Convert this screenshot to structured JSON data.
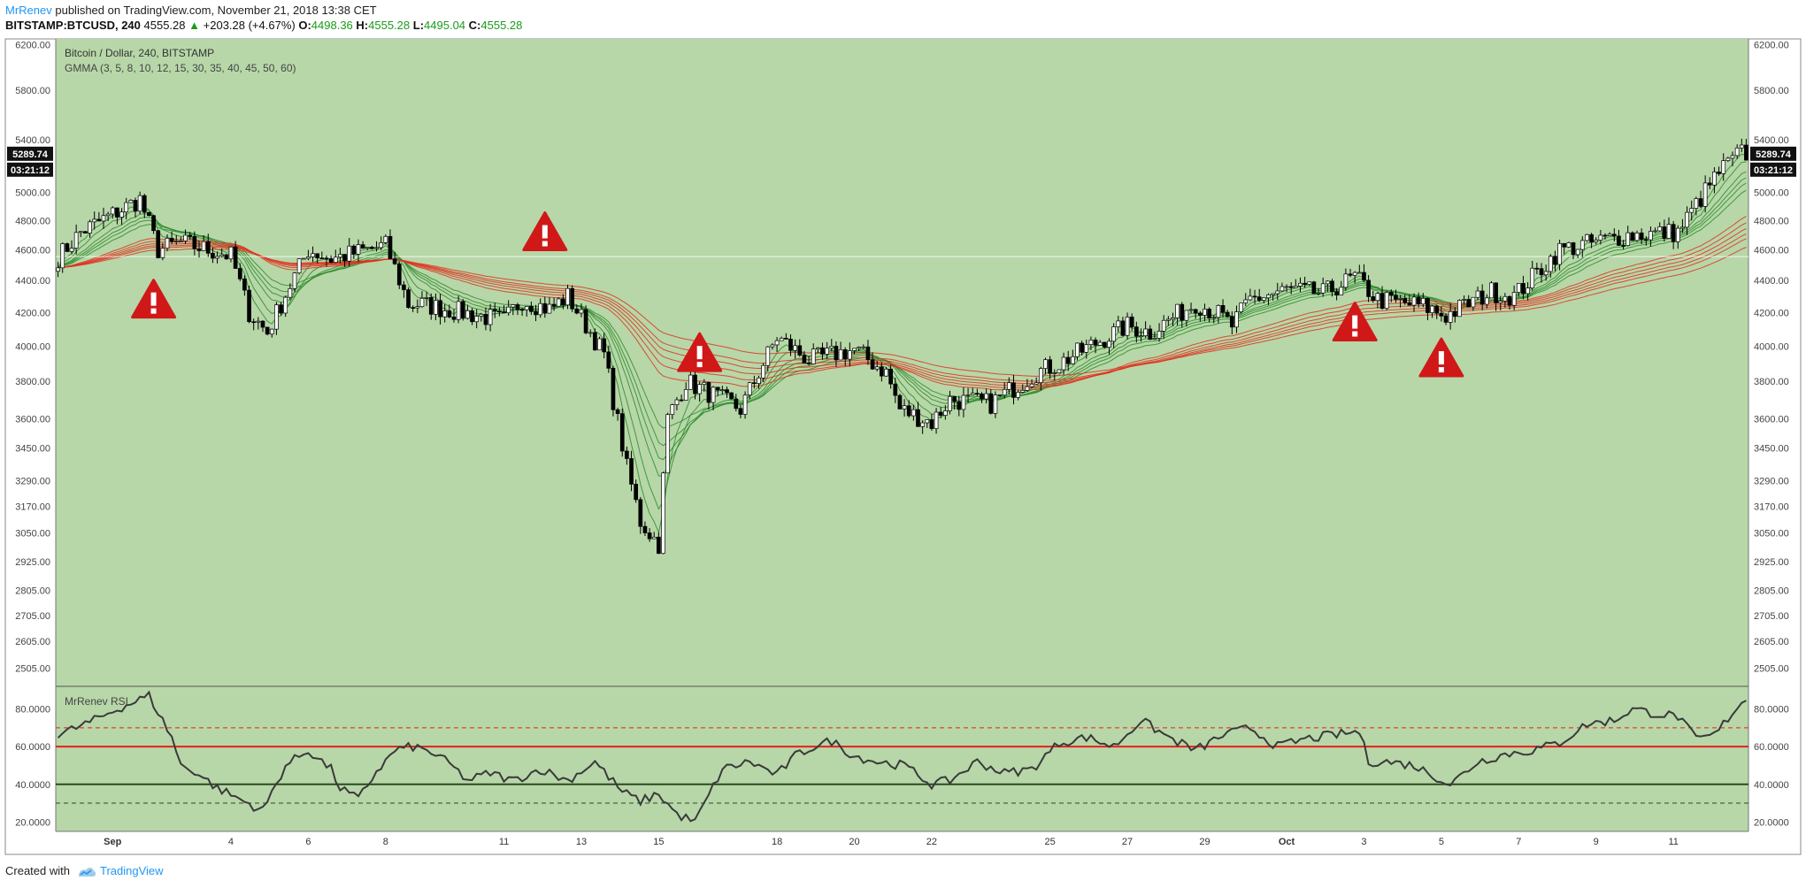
{
  "header": {
    "author": "MrRenev",
    "published_text": " published on TradingView.com, November 21, 2018 13:38 CET",
    "symbol_line": "BITSTAMP:BTCUSD, 240",
    "last": "4555.28",
    "change": "+203.28 (+4.67%)",
    "o_label": "O:",
    "o_value": "4498.36",
    "h_label": "H:",
    "h_value": "4555.28",
    "l_label": "L:",
    "l_value": "4495.04",
    "c_label": "C:",
    "c_value": "4555.28"
  },
  "footer": {
    "created_with": "Created with",
    "brand": "TradingView"
  },
  "colors": {
    "pane_bg": "#b7d7a8",
    "candle_up": "#ffffff",
    "candle_down": "#000000",
    "gmma_short": "#2e8b2e",
    "gmma_long": "#e03020",
    "rsi_line": "#3a3a3a",
    "rsi_60": "#e8201a",
    "rsi_40": "#2c4a22",
    "warning": "#d01818"
  },
  "chart_data": [
    {
      "type": "candlestick",
      "title": "Bitcoin / Dollar, 240, BITSTAMP",
      "indicator_label": "GMMA (3, 5, 8, 10, 12, 15, 30, 35, 40, 45, 50, 60)",
      "gmma_periods": [
        3,
        5,
        8,
        10,
        12,
        15,
        30,
        35,
        40,
        45,
        50,
        60
      ],
      "scale": "log",
      "ylim": [
        2440,
        6250
      ],
      "y_ticks": [
        "6200.00",
        "5800.00",
        "5400.00",
        "5000.00",
        "4800.00",
        "4600.00",
        "4400.00",
        "4200.00",
        "4000.00",
        "3800.00",
        "3600.00",
        "3450.00",
        "3290.00",
        "3170.00",
        "3050.00",
        "2925.00",
        "2805.00",
        "2705.00",
        "2605.00",
        "2505.00"
      ],
      "price_badge": "5289.74",
      "timer_badge": "03:21:12",
      "x_tick_labels": [
        "Sep",
        "4",
        "6",
        "8",
        "11",
        "13",
        "15",
        "18",
        "20",
        "22",
        "25",
        "27",
        "29",
        "Oct",
        "3",
        "5",
        "7",
        "9",
        "11"
      ],
      "x_tick_index": [
        12,
        38,
        55,
        72,
        98,
        115,
        132,
        158,
        175,
        192,
        218,
        235,
        252,
        270,
        287,
        304,
        321,
        338,
        355
      ],
      "path_dates": [
        "Aug 31",
        "Sep 1",
        "Sep 4",
        "Sep 6",
        "Sep 8",
        "Sep 11",
        "Sep 13",
        "Sep 15",
        "Sep 18",
        "Sep 20",
        "Sep 22",
        "Sep 25",
        "Sep 27",
        "Sep 29",
        "Oct 1",
        "Oct 3",
        "Oct 5",
        "Oct 7",
        "Oct 9",
        "Oct 11",
        "Oct 13"
      ],
      "path_idx": [
        0,
        5,
        18,
        22,
        27,
        38,
        42,
        46,
        55,
        60,
        72,
        76,
        77,
        80,
        98,
        102,
        108,
        112,
        120,
        122,
        125,
        128,
        132,
        134,
        138,
        150,
        158,
        165,
        175,
        182,
        185,
        192,
        196,
        205,
        215,
        220,
        235,
        240,
        250,
        255,
        258,
        262,
        270,
        278,
        285,
        290,
        300,
        305,
        315,
        320,
        330,
        345,
        356,
        365,
        370,
        371
      ],
      "path_price": [
        4550,
        4720,
        4950,
        4600,
        4650,
        4560,
        4200,
        4080,
        4600,
        4540,
        4630,
        4330,
        4250,
        4250,
        4150,
        4280,
        4220,
        4300,
        3950,
        3700,
        3350,
        3100,
        3000,
        3600,
        3800,
        3650,
        4050,
        3920,
        3980,
        3850,
        3650,
        3580,
        3700,
        3680,
        3850,
        3900,
        4120,
        4080,
        4260,
        4190,
        4120,
        4280,
        4340,
        4320,
        4420,
        4280,
        4240,
        4180,
        4330,
        4300,
        4600,
        4700,
        4720,
        5150,
        5300,
        5289.74
      ],
      "warnings": [
        {
          "idx": 21,
          "price": 4280
        },
        {
          "idx": 107,
          "price": 4720
        },
        {
          "idx": 141,
          "price": 3960
        },
        {
          "idx": 285,
          "price": 4140
        },
        {
          "idx": 304,
          "price": 3930
        }
      ]
    },
    {
      "type": "line",
      "title": "MrRenev RSI",
      "ylim": [
        15,
        92
      ],
      "y_ticks": [
        "80.0000",
        "60.0000",
        "40.0000",
        "20.0000"
      ],
      "levels": [
        {
          "value": 70,
          "style": "dashed-red"
        },
        {
          "value": 60,
          "style": "solid-red"
        },
        {
          "value": 40,
          "style": "solid-dark"
        },
        {
          "value": 30,
          "style": "dashed-dark"
        }
      ],
      "path_idx": [
        0,
        8,
        13,
        20,
        25,
        27,
        30,
        35,
        40,
        45,
        50,
        55,
        60,
        62,
        66,
        70,
        72,
        74,
        78,
        82,
        86,
        90,
        95,
        100,
        106,
        112,
        118,
        124,
        128,
        132,
        136,
        140,
        146,
        152,
        158,
        162,
        166,
        170,
        175,
        180,
        186,
        192,
        196,
        202,
        208,
        214,
        220,
        226,
        232,
        238,
        244,
        250,
        256,
        262,
        268,
        274,
        280,
        286,
        288,
        292,
        298,
        302,
        306,
        312,
        318,
        324,
        330,
        336,
        342,
        346,
        350,
        356,
        360,
        364,
        366,
        370,
        373
      ],
      "path_value": [
        66,
        74,
        80,
        87,
        65,
        50,
        47,
        38,
        32,
        26,
        50,
        58,
        48,
        38,
        32,
        47,
        52,
        58,
        60,
        57,
        51,
        42,
        46,
        42,
        48,
        42,
        52,
        36,
        31,
        35,
        24,
        20,
        48,
        52,
        45,
        55,
        60,
        63,
        55,
        52,
        50,
        40,
        42,
        52,
        46,
        48,
        62,
        65,
        60,
        74,
        65,
        58,
        66,
        70,
        60,
        64,
        66,
        68,
        52,
        52,
        50,
        45,
        40,
        52,
        56,
        58,
        62,
        72,
        74,
        80,
        78,
        76,
        64,
        66,
        72,
        84,
        85
      ]
    }
  ]
}
